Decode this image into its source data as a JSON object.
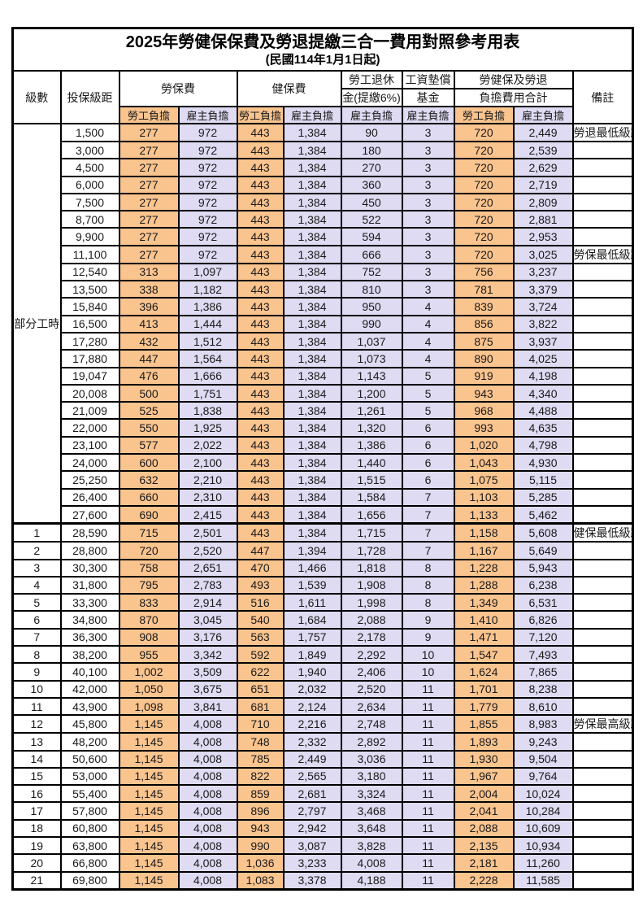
{
  "title": {
    "line1": "2025年勞健保保費及勞退提繳三合一費用對照參考用表",
    "line2": "(民國114年1月1日起)"
  },
  "header": {
    "level": "級數",
    "bracket": "投保級距",
    "labor_insurance": "勞保費",
    "health_insurance": "健保費",
    "pension_line1": "勞工退休",
    "pension_line2": "金(提繳6%)",
    "wage_fund_line1": "工資墊償",
    "wage_fund_line2": "基金",
    "total_line1": "勞健保及勞退",
    "total_line2": "負擔費用合計",
    "remark": "備註",
    "employee_burden": "勞工負擔",
    "employer_burden": "雇主負擔"
  },
  "part_time_group": {
    "label": "部分工時",
    "rowspan": 23
  },
  "colors": {
    "employee_bg": "#FAC48F",
    "employer_bg": "#DEDBF2",
    "highlight_text": "#E8564F",
    "remark_text": "#FF4A42",
    "border": "#000000"
  },
  "rows": [
    {
      "bracket": "1,500",
      "values": [
        "277",
        "972",
        "443",
        "1,384",
        "90",
        "3",
        "720",
        "2,449"
      ],
      "remark": "勞退最低級距",
      "red": true
    },
    {
      "bracket": "3,000",
      "values": [
        "277",
        "972",
        "443",
        "1,384",
        "180",
        "3",
        "720",
        "2,539"
      ],
      "remark": ""
    },
    {
      "bracket": "4,500",
      "values": [
        "277",
        "972",
        "443",
        "1,384",
        "270",
        "3",
        "720",
        "2,629"
      ],
      "remark": ""
    },
    {
      "bracket": "6,000",
      "values": [
        "277",
        "972",
        "443",
        "1,384",
        "360",
        "3",
        "720",
        "2,719"
      ],
      "remark": ""
    },
    {
      "bracket": "7,500",
      "values": [
        "277",
        "972",
        "443",
        "1,384",
        "450",
        "3",
        "720",
        "2,809"
      ],
      "remark": ""
    },
    {
      "bracket": "8,700",
      "values": [
        "277",
        "972",
        "443",
        "1,384",
        "522",
        "3",
        "720",
        "2,881"
      ],
      "remark": ""
    },
    {
      "bracket": "9,900",
      "values": [
        "277",
        "972",
        "443",
        "1,384",
        "594",
        "3",
        "720",
        "2,953"
      ],
      "remark": ""
    },
    {
      "bracket": "11,100",
      "values": [
        "277",
        "972",
        "443",
        "1,384",
        "666",
        "3",
        "720",
        "3,025"
      ],
      "remark": "勞保最低級距",
      "red": true
    },
    {
      "bracket": "12,540",
      "values": [
        "313",
        "1,097",
        "443",
        "1,384",
        "752",
        "3",
        "756",
        "3,237"
      ],
      "remark": ""
    },
    {
      "bracket": "13,500",
      "values": [
        "338",
        "1,182",
        "443",
        "1,384",
        "810",
        "3",
        "781",
        "3,379"
      ],
      "remark": ""
    },
    {
      "bracket": "15,840",
      "values": [
        "396",
        "1,386",
        "443",
        "1,384",
        "950",
        "4",
        "839",
        "3,724"
      ],
      "remark": ""
    },
    {
      "bracket": "16,500",
      "values": [
        "413",
        "1,444",
        "443",
        "1,384",
        "990",
        "4",
        "856",
        "3,822"
      ],
      "remark": ""
    },
    {
      "bracket": "17,280",
      "values": [
        "432",
        "1,512",
        "443",
        "1,384",
        "1,037",
        "4",
        "875",
        "3,937"
      ],
      "remark": ""
    },
    {
      "bracket": "17,880",
      "values": [
        "447",
        "1,564",
        "443",
        "1,384",
        "1,073",
        "4",
        "890",
        "4,025"
      ],
      "remark": ""
    },
    {
      "bracket": "19,047",
      "values": [
        "476",
        "1,666",
        "443",
        "1,384",
        "1,143",
        "5",
        "919",
        "4,198"
      ],
      "remark": ""
    },
    {
      "bracket": "20,008",
      "values": [
        "500",
        "1,751",
        "443",
        "1,384",
        "1,200",
        "5",
        "943",
        "4,340"
      ],
      "remark": ""
    },
    {
      "bracket": "21,009",
      "values": [
        "525",
        "1,838",
        "443",
        "1,384",
        "1,261",
        "5",
        "968",
        "4,488"
      ],
      "remark": ""
    },
    {
      "bracket": "22,000",
      "values": [
        "550",
        "1,925",
        "443",
        "1,384",
        "1,320",
        "6",
        "993",
        "4,635"
      ],
      "remark": ""
    },
    {
      "bracket": "23,100",
      "values": [
        "577",
        "2,022",
        "443",
        "1,384",
        "1,386",
        "6",
        "1,020",
        "4,798"
      ],
      "remark": ""
    },
    {
      "bracket": "24,000",
      "values": [
        "600",
        "2,100",
        "443",
        "1,384",
        "1,440",
        "6",
        "1,043",
        "4,930"
      ],
      "remark": ""
    },
    {
      "bracket": "25,250",
      "values": [
        "632",
        "2,210",
        "443",
        "1,384",
        "1,515",
        "6",
        "1,075",
        "5,115"
      ],
      "remark": ""
    },
    {
      "bracket": "26,400",
      "values": [
        "660",
        "2,310",
        "443",
        "1,384",
        "1,584",
        "7",
        "1,103",
        "5,285"
      ],
      "remark": ""
    },
    {
      "bracket": "27,600",
      "values": [
        "690",
        "2,415",
        "443",
        "1,384",
        "1,656",
        "7",
        "1,133",
        "5,462"
      ],
      "remark": ""
    },
    {
      "level": "1",
      "bracket": "28,590",
      "values": [
        "715",
        "2,501",
        "443",
        "1,384",
        "1,715",
        "7",
        "1,158",
        "5,608"
      ],
      "remark": "健保最低級距",
      "red": true,
      "bold": true,
      "thick_top": true
    },
    {
      "level": "2",
      "bracket": "28,800",
      "values": [
        "720",
        "2,520",
        "447",
        "1,394",
        "1,728",
        "7",
        "1,167",
        "5,649"
      ],
      "remark": ""
    },
    {
      "level": "3",
      "bracket": "30,300",
      "values": [
        "758",
        "2,651",
        "470",
        "1,466",
        "1,818",
        "8",
        "1,228",
        "5,943"
      ],
      "remark": ""
    },
    {
      "level": "4",
      "bracket": "31,800",
      "values": [
        "795",
        "2,783",
        "493",
        "1,539",
        "1,908",
        "8",
        "1,288",
        "6,238"
      ],
      "remark": ""
    },
    {
      "level": "5",
      "bracket": "33,300",
      "values": [
        "833",
        "2,914",
        "516",
        "1,611",
        "1,998",
        "8",
        "1,349",
        "6,531"
      ],
      "remark": ""
    },
    {
      "level": "6",
      "bracket": "34,800",
      "values": [
        "870",
        "3,045",
        "540",
        "1,684",
        "2,088",
        "9",
        "1,410",
        "6,826"
      ],
      "remark": ""
    },
    {
      "level": "7",
      "bracket": "36,300",
      "values": [
        "908",
        "3,176",
        "563",
        "1,757",
        "2,178",
        "9",
        "1,471",
        "7,120"
      ],
      "remark": ""
    },
    {
      "level": "8",
      "bracket": "38,200",
      "values": [
        "955",
        "3,342",
        "592",
        "1,849",
        "2,292",
        "10",
        "1,547",
        "7,493"
      ],
      "remark": ""
    },
    {
      "level": "9",
      "bracket": "40,100",
      "values": [
        "1,002",
        "3,509",
        "622",
        "1,940",
        "2,406",
        "10",
        "1,624",
        "7,865"
      ],
      "remark": ""
    },
    {
      "level": "10",
      "bracket": "42,000",
      "values": [
        "1,050",
        "3,675",
        "651",
        "2,032",
        "2,520",
        "11",
        "1,701",
        "8,238"
      ],
      "remark": ""
    },
    {
      "level": "11",
      "bracket": "43,900",
      "values": [
        "1,098",
        "3,841",
        "681",
        "2,124",
        "2,634",
        "11",
        "1,779",
        "8,610"
      ],
      "remark": ""
    },
    {
      "level": "12",
      "bracket": "45,800",
      "values": [
        "1,145",
        "4,008",
        "710",
        "2,216",
        "2,748",
        "11",
        "1,855",
        "8,983"
      ],
      "remark": "勞保最高級距",
      "red": true,
      "bold": true
    },
    {
      "level": "13",
      "bracket": "48,200",
      "values": [
        "1,145",
        "4,008",
        "748",
        "2,332",
        "2,892",
        "11",
        "1,893",
        "9,243"
      ],
      "remark": ""
    },
    {
      "level": "14",
      "bracket": "50,600",
      "values": [
        "1,145",
        "4,008",
        "785",
        "2,449",
        "3,036",
        "11",
        "1,930",
        "9,504"
      ],
      "remark": ""
    },
    {
      "level": "15",
      "bracket": "53,000",
      "values": [
        "1,145",
        "4,008",
        "822",
        "2,565",
        "3,180",
        "11",
        "1,967",
        "9,764"
      ],
      "remark": ""
    },
    {
      "level": "16",
      "bracket": "55,400",
      "values": [
        "1,145",
        "4,008",
        "859",
        "2,681",
        "3,324",
        "11",
        "2,004",
        "10,024"
      ],
      "remark": ""
    },
    {
      "level": "17",
      "bracket": "57,800",
      "values": [
        "1,145",
        "4,008",
        "896",
        "2,797",
        "3,468",
        "11",
        "2,041",
        "10,284"
      ],
      "remark": ""
    },
    {
      "level": "18",
      "bracket": "60,800",
      "values": [
        "1,145",
        "4,008",
        "943",
        "2,942",
        "3,648",
        "11",
        "2,088",
        "10,609"
      ],
      "remark": ""
    },
    {
      "level": "19",
      "bracket": "63,800",
      "values": [
        "1,145",
        "4,008",
        "990",
        "3,087",
        "3,828",
        "11",
        "2,135",
        "10,934"
      ],
      "remark": ""
    },
    {
      "level": "20",
      "bracket": "66,800",
      "values": [
        "1,145",
        "4,008",
        "1,036",
        "3,233",
        "4,008",
        "11",
        "2,181",
        "11,260"
      ],
      "remark": ""
    },
    {
      "level": "21",
      "bracket": "69,800",
      "values": [
        "1,145",
        "4,008",
        "1,083",
        "3,378",
        "4,188",
        "11",
        "2,228",
        "11,585"
      ],
      "remark": ""
    }
  ]
}
